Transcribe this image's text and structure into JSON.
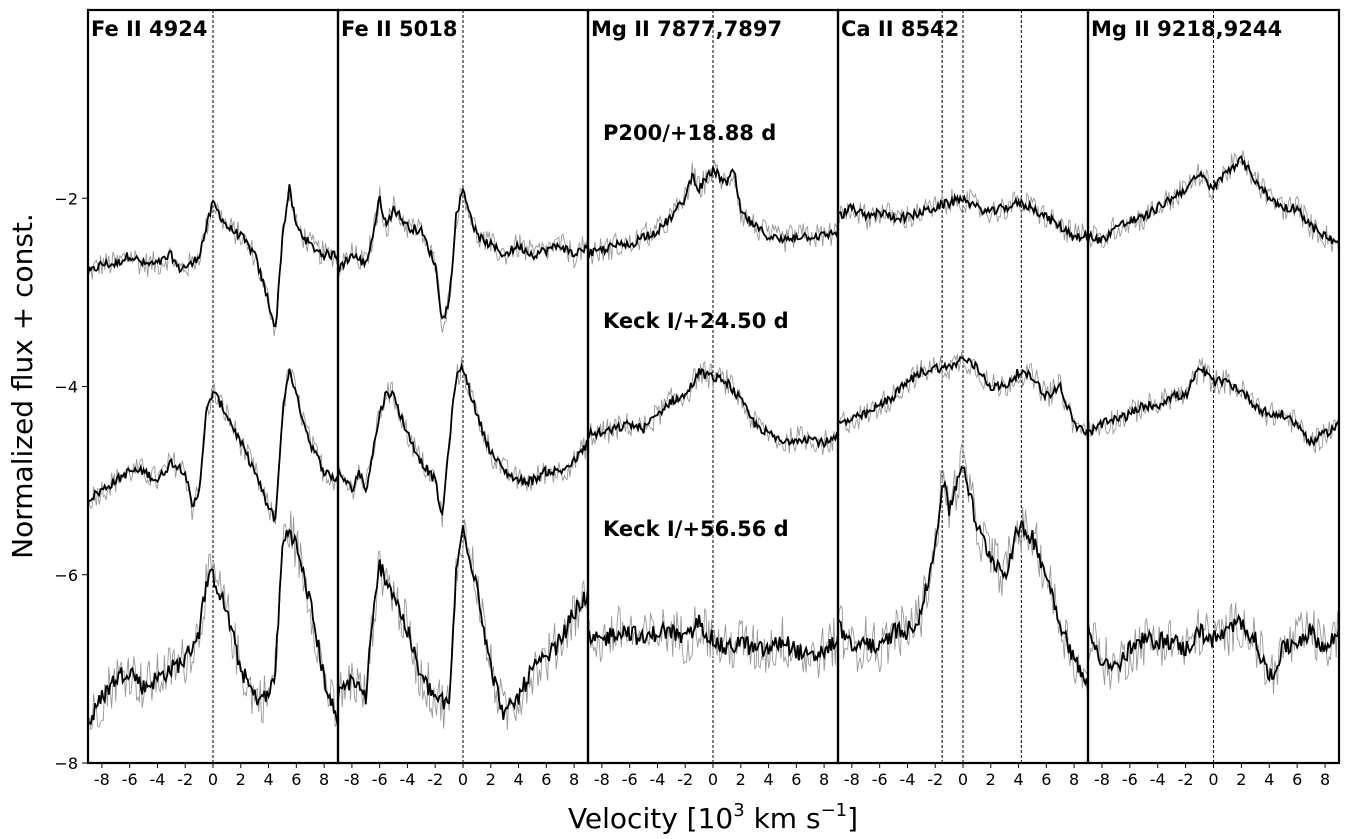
{
  "chart_data": {
    "type": "line",
    "xlabel": "Velocity [10",
    "xlabel_sup": "3",
    "xlabel_mid": " km s",
    "xlabel_sup2": "−1",
    "xlabel_end": "]",
    "ylabel": "Normalized flux + const.",
    "ylim": [
      -8,
      0
    ],
    "xlim": [
      -9,
      9
    ],
    "yticks": [
      -2,
      -4,
      -6,
      -8
    ],
    "xticks": [
      -8,
      -6,
      -4,
      -2,
      0,
      2,
      4,
      6,
      8
    ],
    "epochs": [
      {
        "label": "P200/+18.88 d",
        "offset": -2.0
      },
      {
        "label": "Keck I/+24.50 d",
        "offset": -4.0
      },
      {
        "label": "Keck I/+56.56 d",
        "offset": -6.0
      }
    ],
    "panels": [
      {
        "title": "Fe II 4924",
        "ref_lines": [
          0
        ],
        "series": [
          {
            "x": [
              -9,
              -8,
              -7,
              -6,
              -5,
              -4,
              -3,
              -2.5,
              -1.5,
              -1,
              0,
              1,
              2,
              3,
              4,
              4.5,
              5,
              5.5,
              6,
              7,
              8,
              9
            ],
            "y": [
              -2.8,
              -2.7,
              -2.7,
              -2.6,
              -2.7,
              -2.7,
              -2.6,
              -2.75,
              -2.7,
              -2.6,
              -2.05,
              -2.3,
              -2.4,
              -2.6,
              -3.1,
              -3.4,
              -2.4,
              -1.9,
              -2.3,
              -2.5,
              -2.6,
              -2.6
            ]
          },
          {
            "x": [
              -9,
              -8,
              -7,
              -6,
              -5,
              -4,
              -3,
              -2,
              -1.5,
              -1,
              -0.5,
              0,
              1,
              2,
              3,
              4,
              4.5,
              5,
              5.5,
              6,
              7,
              8,
              9
            ],
            "y": [
              -5.2,
              -5.1,
              -5.0,
              -4.9,
              -4.9,
              -5.0,
              -4.8,
              -4.9,
              -5.3,
              -5.1,
              -4.3,
              -4.05,
              -4.3,
              -4.6,
              -4.9,
              -5.3,
              -5.4,
              -4.3,
              -3.8,
              -4.1,
              -4.6,
              -4.9,
              -5.0
            ]
          },
          {
            "x": [
              -9,
              -8,
              -7,
              -6,
              -5,
              -4,
              -3,
              -2,
              -1,
              -0.5,
              0,
              1,
              2,
              3,
              4,
              4.5,
              5,
              5.5,
              6,
              7,
              8,
              9
            ],
            "y": [
              -7.6,
              -7.3,
              -7.1,
              -7.0,
              -7.2,
              -7.1,
              -7.0,
              -6.9,
              -6.6,
              -6.1,
              -6.0,
              -6.4,
              -7.0,
              -7.3,
              -7.3,
              -7.0,
              -5.7,
              -5.5,
              -5.7,
              -6.3,
              -7.1,
              -7.6
            ]
          }
        ]
      },
      {
        "title": "Fe II 5018",
        "ref_lines": [
          0
        ],
        "series": [
          {
            "x": [
              -9,
              -8,
              -7,
              -6.5,
              -6,
              -5.5,
              -5,
              -4,
              -3,
              -2,
              -1.5,
              -1,
              -0.5,
              0,
              1,
              2,
              3,
              4,
              5,
              6,
              7,
              8,
              9
            ],
            "y": [
              -2.75,
              -2.6,
              -2.7,
              -2.4,
              -2.0,
              -2.3,
              -2.1,
              -2.3,
              -2.35,
              -2.7,
              -3.3,
              -3.1,
              -2.2,
              -1.9,
              -2.4,
              -2.5,
              -2.6,
              -2.5,
              -2.6,
              -2.55,
              -2.5,
              -2.6,
              -2.5
            ]
          },
          {
            "x": [
              -9,
              -8,
              -7.5,
              -7,
              -6,
              -5.5,
              -5,
              -4,
              -3,
              -2,
              -1.5,
              -1,
              -0.5,
              0,
              1,
              2,
              3,
              4,
              5,
              6,
              7,
              8,
              9
            ],
            "y": [
              -4.9,
              -5.1,
              -4.9,
              -5.1,
              -4.3,
              -4.05,
              -4.1,
              -4.5,
              -4.8,
              -5.0,
              -5.4,
              -4.6,
              -3.9,
              -3.8,
              -4.3,
              -4.7,
              -4.9,
              -5.0,
              -5.0,
              -4.9,
              -4.9,
              -4.8,
              -4.6
            ]
          },
          {
            "x": [
              -9,
              -8,
              -7,
              -6.5,
              -6,
              -5,
              -4,
              -3,
              -2,
              -1,
              -0.5,
              0,
              1,
              2,
              3,
              4,
              5,
              6,
              7,
              8,
              9
            ],
            "y": [
              -7.3,
              -7.1,
              -7.3,
              -6.5,
              -5.9,
              -6.2,
              -6.6,
              -7.1,
              -7.3,
              -7.4,
              -6.0,
              -5.5,
              -6.1,
              -7.0,
              -7.5,
              -7.3,
              -7.0,
              -6.9,
              -6.7,
              -6.4,
              -6.2
            ]
          }
        ]
      },
      {
        "title": "Mg II 7877,7897",
        "ref_lines": [
          0
        ],
        "series": [
          {
            "x": [
              -9,
              -8,
              -7,
              -6,
              -5,
              -4,
              -3,
              -2,
              -1.5,
              -1,
              0,
              1,
              1.5,
              2,
              3,
              4,
              5,
              6,
              7,
              8,
              9
            ],
            "y": [
              -2.6,
              -2.55,
              -2.5,
              -2.5,
              -2.4,
              -2.35,
              -2.2,
              -2.0,
              -1.75,
              -1.9,
              -1.7,
              -1.85,
              -1.7,
              -2.15,
              -2.3,
              -2.4,
              -2.45,
              -2.4,
              -2.4,
              -2.4,
              -2.35
            ]
          },
          {
            "x": [
              -9,
              -8,
              -7,
              -6,
              -5,
              -4,
              -3,
              -2,
              -1,
              0,
              1,
              2,
              3,
              4,
              5,
              6,
              7,
              8,
              9
            ],
            "y": [
              -4.5,
              -4.5,
              -4.45,
              -4.4,
              -4.45,
              -4.3,
              -4.15,
              -4.1,
              -3.85,
              -3.9,
              -3.95,
              -4.15,
              -4.4,
              -4.5,
              -4.6,
              -4.55,
              -4.55,
              -4.6,
              -4.55
            ]
          },
          {
            "x": [
              -9,
              -8,
              -7,
              -6,
              -5,
              -4,
              -3,
              -2,
              -1,
              0,
              1,
              2,
              3,
              4,
              5,
              6,
              7,
              8,
              9
            ],
            "y": [
              -6.7,
              -6.7,
              -6.6,
              -6.6,
              -6.7,
              -6.6,
              -6.6,
              -6.7,
              -6.5,
              -6.7,
              -6.8,
              -6.7,
              -6.8,
              -6.8,
              -6.7,
              -6.8,
              -6.9,
              -6.8,
              -6.7
            ]
          }
        ]
      },
      {
        "title": "Ca II 8542",
        "ref_lines": [
          -1.5,
          0,
          4.2
        ],
        "series": [
          {
            "x": [
              -9,
              -8,
              -7,
              -6,
              -5,
              -4,
              -3,
              -2,
              -1,
              0,
              1,
              2,
              3,
              4,
              5,
              6,
              7,
              8,
              9
            ],
            "y": [
              -2.2,
              -2.1,
              -2.2,
              -2.15,
              -2.2,
              -2.2,
              -2.15,
              -2.1,
              -2.05,
              -2.0,
              -2.1,
              -2.15,
              -2.1,
              -2.05,
              -2.1,
              -2.2,
              -2.3,
              -2.4,
              -2.4
            ]
          },
          {
            "x": [
              -9,
              -8,
              -7,
              -6,
              -5,
              -4,
              -3,
              -2,
              -1,
              0,
              1,
              2,
              3,
              4,
              5,
              6,
              7,
              8,
              9
            ],
            "y": [
              -4.4,
              -4.35,
              -4.3,
              -4.2,
              -4.1,
              -3.95,
              -3.85,
              -3.8,
              -3.8,
              -3.7,
              -3.8,
              -4.0,
              -4.0,
              -3.85,
              -3.9,
              -4.1,
              -4.0,
              -4.4,
              -4.5
            ]
          },
          {
            "x": [
              -9,
              -8,
              -7,
              -6,
              -5,
              -4,
              -3,
              -2,
              -1.5,
              -1,
              0,
              1,
              2,
              3,
              4,
              5,
              6,
              7,
              8,
              9
            ],
            "y": [
              -6.5,
              -6.8,
              -6.7,
              -6.8,
              -6.6,
              -6.6,
              -6.4,
              -5.7,
              -5.0,
              -5.3,
              -4.8,
              -5.5,
              -5.8,
              -6.0,
              -5.5,
              -5.6,
              -6.0,
              -6.5,
              -6.9,
              -7.2
            ]
          }
        ]
      },
      {
        "title": "Mg II 9218,9244",
        "ref_lines": [
          0
        ],
        "series": [
          {
            "x": [
              -9,
              -8,
              -7,
              -6,
              -5,
              -4,
              -3,
              -2,
              -1,
              0,
              1,
              2,
              3,
              4,
              5,
              6,
              7,
              8,
              9
            ],
            "y": [
              -2.4,
              -2.45,
              -2.3,
              -2.25,
              -2.2,
              -2.1,
              -2.0,
              -1.9,
              -1.75,
              -1.9,
              -1.7,
              -1.6,
              -1.8,
              -2.0,
              -2.1,
              -2.1,
              -2.3,
              -2.4,
              -2.5
            ]
          },
          {
            "x": [
              -9,
              -8,
              -7,
              -6,
              -5,
              -4,
              -3,
              -2,
              -1,
              0,
              1,
              2,
              3,
              4,
              5,
              6,
              7,
              8,
              9
            ],
            "y": [
              -4.5,
              -4.4,
              -4.35,
              -4.3,
              -4.2,
              -4.2,
              -4.1,
              -4.1,
              -3.8,
              -3.95,
              -3.95,
              -4.05,
              -4.2,
              -4.3,
              -4.3,
              -4.4,
              -4.6,
              -4.5,
              -4.4
            ]
          },
          {
            "x": [
              -9,
              -8,
              -7,
              -6,
              -5,
              -4,
              -3,
              -2,
              -1,
              0,
              1,
              2,
              3,
              4,
              5,
              6,
              7,
              8,
              9
            ],
            "y": [
              -6.6,
              -6.9,
              -7.0,
              -6.8,
              -6.7,
              -6.7,
              -6.7,
              -6.8,
              -6.6,
              -6.7,
              -6.6,
              -6.5,
              -6.7,
              -7.1,
              -6.8,
              -6.7,
              -6.6,
              -6.8,
              -6.6
            ]
          }
        ]
      }
    ],
    "colors": {
      "smoothed": "#000000",
      "raw": "#999999",
      "frame": "#000000"
    },
    "grid": false
  }
}
